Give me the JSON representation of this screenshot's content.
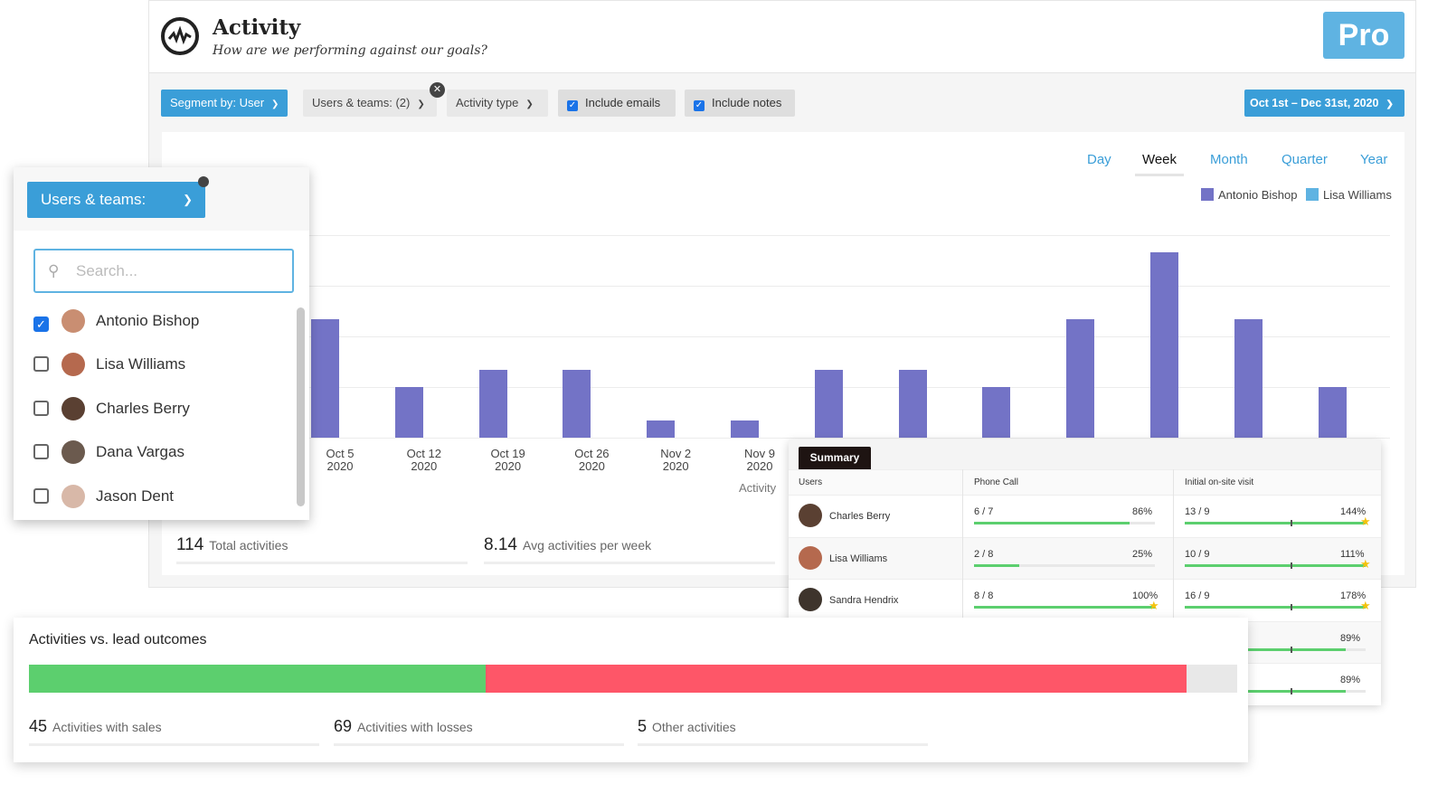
{
  "header": {
    "title": "Activity",
    "subtitle": "How are we performing against our goals?",
    "badge": "Pro"
  },
  "filters": {
    "segment": "Segment by: User",
    "users_teams": "Users & teams: (2)",
    "activity_type": "Activity type",
    "include_emails": "Include emails",
    "include_notes": "Include notes",
    "date_range": "Oct 1st – Dec 31st, 2020"
  },
  "period_tabs": [
    {
      "label": "Day"
    },
    {
      "label": "Week",
      "active": true
    },
    {
      "label": "Month"
    },
    {
      "label": "Quarter"
    },
    {
      "label": "Year"
    }
  ],
  "chart_data": {
    "type": "bar",
    "legend": [
      {
        "name": "Antonio Bishop",
        "color": "#7373c6"
      },
      {
        "name": "Lisa Williams",
        "color": "#5fb3e2"
      }
    ],
    "categories": [
      "Oct 5 2020",
      "Oct 12 2020",
      "Oct 19 2020",
      "Oct 26 2020",
      "Nov 2 2020",
      "Nov 9 2020",
      "",
      "",
      "",
      "",
      "",
      "",
      ""
    ],
    "tick_labels": [
      [
        "Oct 5",
        "2020"
      ],
      [
        "Oct 12",
        "2020"
      ],
      [
        "Oct 19",
        "2020"
      ],
      [
        "Oct 26",
        "2020"
      ],
      [
        "Nov 2",
        "2020"
      ],
      [
        "Nov 9",
        "2020"
      ]
    ],
    "series": [
      {
        "name": "Antonio Bishop",
        "values": [
          7,
          3,
          4,
          4,
          1,
          1,
          4,
          4,
          3,
          7,
          11,
          7,
          3
        ]
      }
    ],
    "xlabel": "Activity",
    "ylim": [
      0,
      12
    ],
    "grid": true,
    "gridlines": [
      0,
      3,
      6,
      9,
      12
    ],
    "legend_position": "top-right"
  },
  "stats": {
    "total_value": "114",
    "total_label": "Total activities",
    "avg_value": "8.14",
    "avg_label": "Avg activities per week"
  },
  "users_dropdown": {
    "button": "Users & teams:",
    "search_placeholder": "Search...",
    "items": [
      {
        "name": "Antonio Bishop",
        "checked": true,
        "color": "#c98e72"
      },
      {
        "name": "Lisa Williams",
        "checked": false,
        "color": "#b5694e"
      },
      {
        "name": "Charles Berry",
        "checked": false,
        "color": "#5a4032"
      },
      {
        "name": "Dana Vargas",
        "checked": false,
        "color": "#6b5a4e"
      },
      {
        "name": "Jason Dent",
        "checked": false,
        "color": "#d8b8a8"
      }
    ]
  },
  "summary": {
    "tab": "Summary",
    "columns": [
      "Users",
      "Phone Call",
      "Initial on-site visit"
    ],
    "rows": [
      {
        "name": "Charles Berry",
        "color": "#5a4032",
        "phone": "6 / 7",
        "phone_pct": "86%",
        "phone_fill": 86,
        "visit": "13 / 9",
        "visit_pct": "144%",
        "visit_fill": 100,
        "phone_star": false,
        "visit_star": true
      },
      {
        "name": "Lisa Williams",
        "color": "#b5694e",
        "phone": "2 / 8",
        "phone_pct": "25%",
        "phone_fill": 25,
        "visit": "10 / 9",
        "visit_pct": "111%",
        "visit_fill": 100,
        "phone_star": false,
        "visit_star": true
      },
      {
        "name": "Sandra Hendrix",
        "color": "#3e342c",
        "phone": "8 / 8",
        "phone_pct": "100%",
        "phone_fill": 100,
        "visit": "16 / 9",
        "visit_pct": "178%",
        "visit_fill": 100,
        "phone_star": true,
        "visit_star": true
      },
      {
        "name": "",
        "phone": "",
        "phone_pct": "",
        "visit": "",
        "visit_pct": "89%",
        "visit_fill": 89
      },
      {
        "name": "",
        "phone": "",
        "phone_pct": "",
        "visit": "",
        "visit_pct": "89%",
        "visit_fill": 89
      }
    ]
  },
  "outcomes": {
    "title": "Activities vs. lead outcomes",
    "sales_value": "45",
    "sales_label": "Activities with sales",
    "losses_value": "69",
    "losses_label": "Activities with losses",
    "other_value": "5",
    "other_label": "Other activities",
    "sales_color": "#5ccf6e",
    "losses_color": "#fe5668",
    "other_color": "#e8e8e8"
  }
}
